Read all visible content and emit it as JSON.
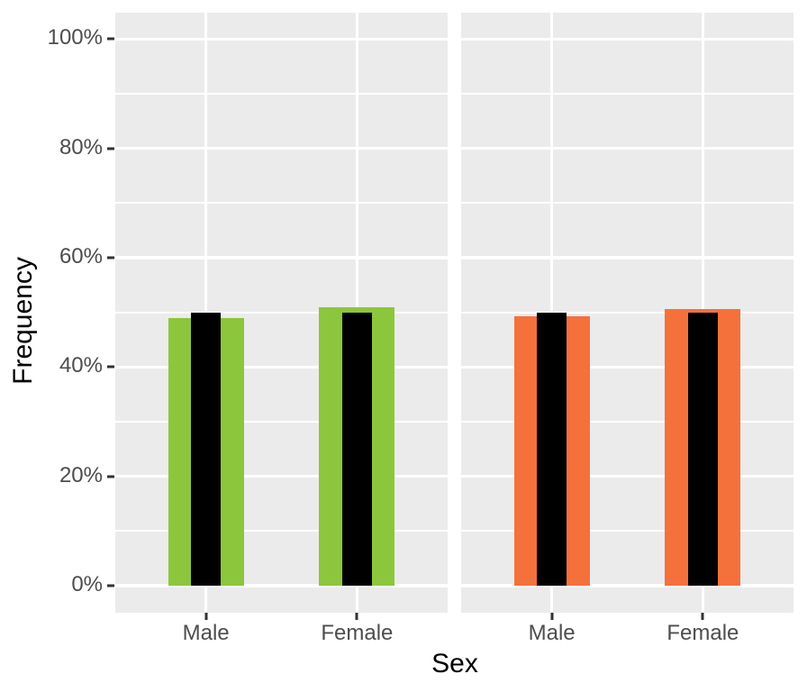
{
  "chart_data": {
    "type": "bar",
    "title": "",
    "xlabel": "Sex",
    "ylabel": "Frequency",
    "categories": [
      "Male",
      "Female"
    ],
    "ylim": [
      0,
      100
    ],
    "y_ticks": [
      {
        "value": 0,
        "label": "0%"
      },
      {
        "value": 20,
        "label": "20%"
      },
      {
        "value": 40,
        "label": "40%"
      },
      {
        "value": 60,
        "label": "60%"
      },
      {
        "value": 80,
        "label": "80%"
      },
      {
        "value": 100,
        "label": "100%"
      }
    ],
    "y_minor_gridlines": [
      10,
      30,
      50,
      70,
      90
    ],
    "grid": "major and minor horizontal white gridlines on gray panel; vertical major gridlines at category centers",
    "legend_position": "none",
    "facets": [
      {
        "name": "left-panel",
        "bar_color": "#8CC63C",
        "series": [
          {
            "name": "observed-frequency",
            "values": [
              49.0,
              51.0
            ]
          },
          {
            "name": "overlay-expected-frequency",
            "values": [
              50.0,
              50.0
            ]
          }
        ]
      },
      {
        "name": "right-panel",
        "bar_color": "#F4713C",
        "series": [
          {
            "name": "observed-frequency",
            "values": [
              49.3,
              50.6
            ]
          },
          {
            "name": "overlay-expected-frequency",
            "values": [
              50.0,
              50.0
            ]
          }
        ]
      }
    ],
    "overlay_color": "#000000"
  },
  "style": {
    "panel_background": "#EBEBEB",
    "gridline_color": "#FFFFFF",
    "axis_text_color": "#4D4D4D",
    "axis_title_color": "#000000",
    "tick_mark_color": "#333333",
    "page_background": "#FFFFFF"
  }
}
